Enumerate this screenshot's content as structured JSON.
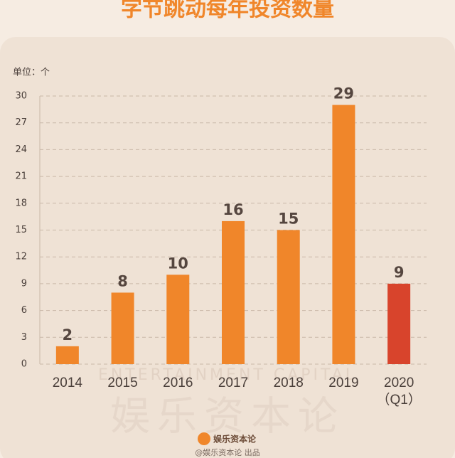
{
  "chart_data": {
    "type": "bar",
    "title": "字节跳动每年投资数量",
    "unit_label": "单位：个",
    "categories": [
      "2014",
      "2015",
      "2016",
      "2017",
      "2018",
      "2019",
      "2020\n（Q1）"
    ],
    "values": [
      2,
      8,
      10,
      16,
      15,
      29,
      9
    ],
    "colors": [
      "#f0862a",
      "#f0862a",
      "#f0862a",
      "#f0862a",
      "#f0862a",
      "#f0862a",
      "#d8442c"
    ],
    "ylim": [
      0,
      30
    ],
    "yticks": [
      0,
      3,
      6,
      9,
      12,
      15,
      18,
      21,
      24,
      27,
      30
    ],
    "grid": true,
    "watermark": "ENTERTAINMENT CAPITAL",
    "watermark_cn": "娱乐资本论",
    "footer_logo": "娱乐资本论",
    "footer": "@娱乐资本论 出品"
  }
}
